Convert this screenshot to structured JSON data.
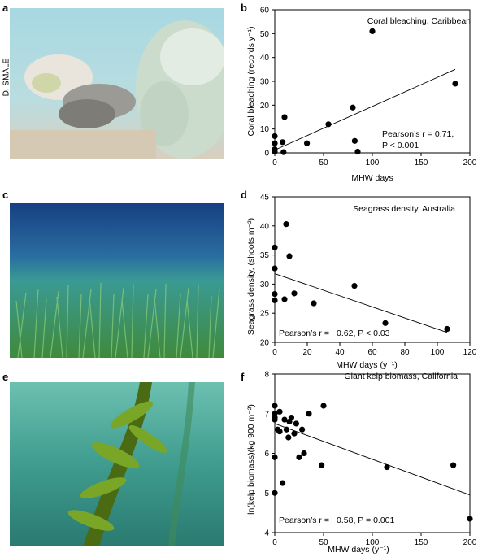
{
  "panels": {
    "a": "a",
    "b": "b",
    "c": "c",
    "d": "d",
    "e": "e",
    "f": "f"
  },
  "photo_credit": "D. SMALE",
  "photos": [
    {
      "name": "coral-reef-photo",
      "palette": [
        "#bfe0e6",
        "#9ccfd6",
        "#e7e0d6"
      ]
    },
    {
      "name": "seagrass-meadow-photo",
      "palette": [
        "#1f4f8a",
        "#2f8a8a",
        "#4a9a4a"
      ]
    },
    {
      "name": "kelp-forest-photo",
      "palette": [
        "#5ab0a2",
        "#2f8c7e",
        "#6a8a1e"
      ]
    }
  ],
  "chart_data": [
    {
      "type": "scatter",
      "title": "Coral bleaching, Caribbean",
      "xlabel": "MHW days",
      "ylabel": "Coral bleaching (records y⁻¹)",
      "xlim": [
        0,
        200
      ],
      "ylim": [
        0,
        60
      ],
      "xticks": [
        0,
        50,
        100,
        150,
        200
      ],
      "yticks": [
        0,
        10,
        20,
        30,
        40,
        50,
        60
      ],
      "annotation": [
        "Pearson’s r = 0.71,",
        "P < 0.001"
      ],
      "points": [
        [
          0,
          0.5
        ],
        [
          0,
          1.5
        ],
        [
          0,
          4
        ],
        [
          0,
          7
        ],
        [
          8,
          4.5
        ],
        [
          9,
          0.3
        ],
        [
          10,
          15
        ],
        [
          33,
          4
        ],
        [
          55,
          12
        ],
        [
          80,
          19
        ],
        [
          82,
          5
        ],
        [
          85,
          0.5
        ],
        [
          100,
          51
        ],
        [
          185,
          29
        ]
      ],
      "fit": [
        [
          0,
          1.2
        ],
        [
          185,
          35
        ]
      ]
    },
    {
      "type": "scatter",
      "title": "Seagrass density, Australia",
      "xlabel": "MHW days (y⁻¹)",
      "ylabel": "Seagrass density, (shoots m⁻²)",
      "xlim": [
        0,
        120
      ],
      "ylim": [
        20,
        45
      ],
      "xticks": [
        0,
        20,
        40,
        60,
        80,
        100,
        120
      ],
      "yticks": [
        20,
        25,
        30,
        35,
        40,
        45
      ],
      "annotation": [
        "Pearson’s r = −0.62, P < 0.03"
      ],
      "points": [
        [
          0,
          36.3
        ],
        [
          0,
          32.7
        ],
        [
          0,
          28.3
        ],
        [
          0,
          27.2
        ],
        [
          6,
          27.4
        ],
        [
          7,
          40.3
        ],
        [
          9,
          34.8
        ],
        [
          12,
          28.4
        ],
        [
          24,
          26.7
        ],
        [
          49,
          29.7
        ],
        [
          68,
          23.3
        ],
        [
          106,
          22.3
        ]
      ],
      "fit": [
        [
          0,
          31.8
        ],
        [
          106,
          21.7
        ]
      ]
    },
    {
      "type": "scatter",
      "title": "Giant kelp biomass, California",
      "xlabel": "MHW days (y⁻¹)",
      "ylabel": "ln(kelp biomass)(kg 900 m⁻²)",
      "xlim": [
        0,
        200
      ],
      "ylim": [
        4,
        8
      ],
      "xticks": [
        0,
        50,
        100,
        150,
        200
      ],
      "yticks": [
        4,
        5,
        6,
        7,
        8
      ],
      "annotation": [
        "Pearson’s r = −0.58, P = 0.001"
      ],
      "points": [
        [
          0,
          7.2
        ],
        [
          0,
          7.0
        ],
        [
          0,
          6.9
        ],
        [
          0,
          6.85
        ],
        [
          0,
          5.9
        ],
        [
          0,
          5.0
        ],
        [
          3,
          6.6
        ],
        [
          5,
          7.05
        ],
        [
          5,
          6.55
        ],
        [
          8,
          5.25
        ],
        [
          10,
          6.85
        ],
        [
          12,
          6.6
        ],
        [
          14,
          6.4
        ],
        [
          15,
          6.8
        ],
        [
          17,
          6.9
        ],
        [
          20,
          6.5
        ],
        [
          22,
          6.75
        ],
        [
          25,
          5.9
        ],
        [
          28,
          6.6
        ],
        [
          30,
          6.0
        ],
        [
          35,
          7.0
        ],
        [
          48,
          5.7
        ],
        [
          50,
          7.2
        ],
        [
          115,
          5.65
        ],
        [
          183,
          5.7
        ],
        [
          200,
          4.35
        ]
      ],
      "fit": [
        [
          0,
          6.75
        ],
        [
          200,
          4.95
        ]
      ]
    }
  ]
}
